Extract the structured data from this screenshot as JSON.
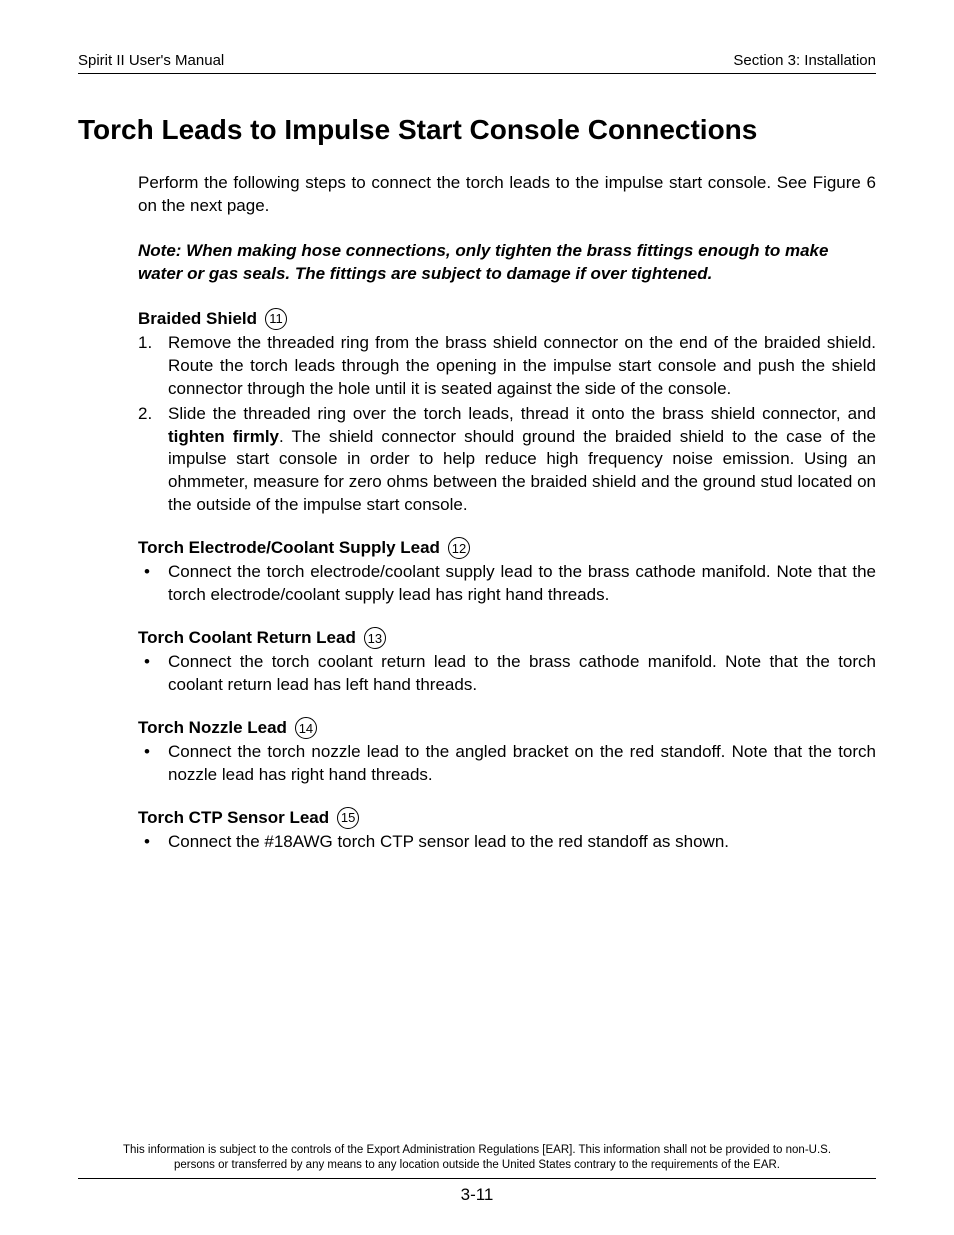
{
  "header": {
    "left": "Spirit II User's Manual",
    "right": "Section 3: Installation"
  },
  "title": "Torch Leads to Impulse Start Console Connections",
  "intro": "Perform the following steps to connect the torch leads to the impulse start console. See Figure 6 on the next page.",
  "note": "Note:  When making hose connections, only tighten the brass fittings enough to make water or gas seals.  The fittings are subject to damage if over tightened.",
  "sections": {
    "braided": {
      "heading": "Braided Shield",
      "badge": "11",
      "items": [
        {
          "marker": "1.",
          "text": "Remove the threaded ring from the brass shield connector on the end of the braided shield.  Route the torch leads through the opening in the impulse start console and push the shield connector through the hole until it is seated against the side of the console."
        },
        {
          "marker": "2.",
          "pre": "Slide the threaded ring over the torch leads, thread it onto the brass shield connector, and ",
          "bold": "tighten firmly",
          "post": ".  The shield connector should ground the braided shield to the case of the impulse start console in order to help reduce high frequency noise emission.  Using an ohmmeter, measure for zero ohms between the braided shield and the ground stud located on the outside of the impulse start console."
        }
      ]
    },
    "electrode": {
      "heading": "Torch Electrode/Coolant Supply Lead",
      "badge": "12",
      "bullet": "Connect the torch electrode/coolant supply lead to the brass cathode manifold.  Note that the torch electrode/coolant supply lead has right hand threads."
    },
    "coolant": {
      "heading": "Torch Coolant Return Lead",
      "badge": "13",
      "bullet": "Connect the torch coolant return lead to the brass cathode manifold.  Note that the torch coolant return lead has left hand threads."
    },
    "nozzle": {
      "heading": "Torch Nozzle Lead",
      "badge": "14",
      "bullet": "Connect the torch nozzle lead to the angled bracket on the red standoff.  Note that the torch nozzle lead has right hand threads."
    },
    "ctp": {
      "heading": "Torch CTP Sensor Lead",
      "badge": "15",
      "bullet": "Connect the #18AWG torch CTP sensor lead to the red standoff as shown."
    }
  },
  "footer": {
    "text": "This information is subject to the controls of the Export Administration Regulations [EAR].  This information shall not be provided to non-U.S. persons or transferred by any means to any location outside the United States contrary to the requirements of the EAR.",
    "page": "3-11"
  }
}
